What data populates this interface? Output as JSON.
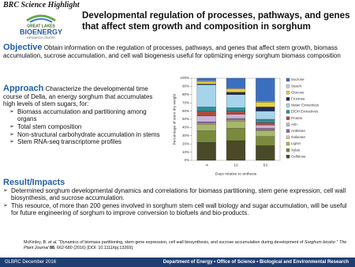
{
  "header": {
    "kicker": "BRC Science Highlight",
    "title": "Developmental regulation of processes, pathways, and genes that affect stem growth and composition in sorghum"
  },
  "logo": {
    "line1": "GREAT LAKES",
    "line2": "BIOENERGY",
    "line3": "RESEARCH CENTER"
  },
  "objective": {
    "label": "Objective",
    "text": "Obtain information on the regulation of processes, pathways, and genes that affect stem growth, biomass accumulation, sucrose accumulation, and cell wall biogenesis useful for optimizing energy sorghum biomass composition"
  },
  "approach": {
    "label": "Approach",
    "text": "Characterize the developmental time course of Della, an energy sorghum that accumulates high levels of stem sugars, for:",
    "bullets": [
      "Biomass accumulation and partitioning among organs",
      "Total stem composition",
      "Non-structural carbohydrate accumulation in stems",
      "Stem RNA-seq transcriptome profiles"
    ]
  },
  "results": {
    "label": "Result/Impacts",
    "bullets": [
      "Determined sorghum developmental dynamics and correlations for biomass partitioning, stem gene expression, cell wall biosynthesis, and sucrose accumulation.",
      "This resource, of more than 200 genes involved in sorghum stem cell wall biology and sugar accumulation, will be useful for future engineering of sorghum to improve conversion to biofuels and bio-products."
    ]
  },
  "citation": [
    "McKinley, B. ",
    "et al.",
    " “Dynamics of biomass partitioning, stem gene expression, cell wall biosynthesis, and sucrose accumulation during development of ",
    "Sorghum bicolor",
    ".” ",
    "The Plant Journal",
    " ",
    "88",
    ", 662-680 (2016) [DOI: 10.1111/tpj.13269]."
  ],
  "footer": {
    "left": "GLBRC December 2016",
    "right": "Department of Energy • Office of Science • Biological and Environmental Research"
  },
  "chart_data": {
    "type": "bar",
    "stacked": true,
    "x_label": "Days relative to anthesis",
    "y_label": "Percentage of stem dry weight",
    "categories": [
      "-4",
      "10",
      "53"
    ],
    "ylim": [
      0,
      100
    ],
    "yticks": [
      {
        "value": 0,
        "label": "0%"
      },
      {
        "value": 10,
        "label": "10%"
      },
      {
        "value": 20,
        "label": "20%"
      },
      {
        "value": 30,
        "label": "30%"
      },
      {
        "value": 40,
        "label": "40%"
      },
      {
        "value": 50,
        "label": "50%"
      },
      {
        "value": 60,
        "label": "60%"
      },
      {
        "value": 70,
        "label": "70%"
      },
      {
        "value": 80,
        "label": "80%"
      },
      {
        "value": 90,
        "label": "90%"
      },
      {
        "value": 100,
        "label": "100%"
      }
    ],
    "series": [
      {
        "name": "Cellulose",
        "color": "#4a4a28",
        "values": [
          22,
          24,
          18
        ]
      },
      {
        "name": "Xylan",
        "color": "#7a8a3c",
        "values": [
          14,
          15,
          11
        ]
      },
      {
        "name": "Lignin",
        "color": "#a8b86a",
        "values": [
          8,
          9,
          7
        ]
      },
      {
        "name": "Galactan",
        "color": "#d8cfa0",
        "values": [
          1,
          1,
          1
        ]
      },
      {
        "name": "Arabinan",
        "color": "#8c6e9e",
        "values": [
          2,
          2,
          2
        ]
      },
      {
        "name": "Ash",
        "color": "#c8b4d8",
        "values": [
          7,
          5,
          4
        ]
      },
      {
        "name": "Protein",
        "color": "#b04a3a",
        "values": [
          6,
          4,
          3
        ]
      },
      {
        "name": "EtOH Extractives",
        "color": "#2f8f9a",
        "values": [
          5,
          4,
          4
        ]
      },
      {
        "name": "Water Extractives",
        "color": "#a6d4ea",
        "values": [
          27,
          16,
          10
        ]
      },
      {
        "name": "Fructose",
        "color": "#1f2e5c",
        "values": [
          1,
          3,
          5
        ]
      },
      {
        "name": "Glucose",
        "color": "#e8d23a",
        "values": [
          3,
          4,
          6
        ]
      },
      {
        "name": "Starch",
        "color": "#d6c8e6",
        "values": [
          1,
          1,
          1
        ]
      },
      {
        "name": "Sucrose",
        "color": "#3a6fc0",
        "values": [
          3,
          12,
          28
        ]
      }
    ]
  }
}
